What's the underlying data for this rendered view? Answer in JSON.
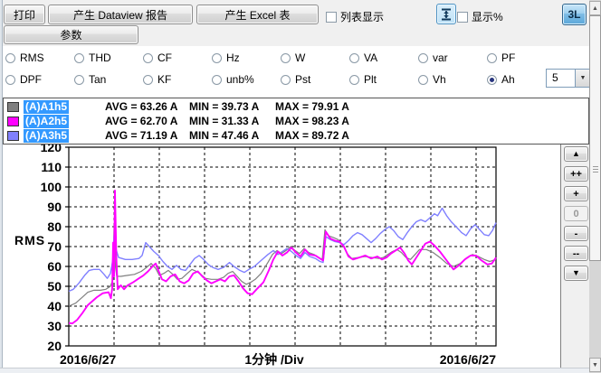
{
  "toolbar": {
    "print_label": "打印",
    "dataview_label": "产生 Dataview 报告",
    "excel_label": "产生 Excel 表",
    "list_display_label": "列表显示",
    "show_percent_label": "显示%",
    "mode_label": "3L",
    "params_label": "参数",
    "fit_icon": "fit-vertical-scale-icon"
  },
  "measures": {
    "rows": [
      [
        "RMS",
        "THD",
        "CF",
        "Hz",
        "W",
        "VA",
        "var",
        "PF"
      ],
      [
        "DPF",
        "Tan",
        "KF",
        "unb%",
        "Pst",
        "Plt",
        "Vh",
        "Ah"
      ]
    ],
    "selected": "Ah",
    "harmonic_order": "5",
    "dropdown_arrow": "▼"
  },
  "legend": {
    "rows": [
      {
        "label": "(A)A1h5",
        "color": "#808080",
        "avg": "AVG = 63.26 A",
        "min": "MIN = 39.73 A",
        "max": "MAX = 79.91 A"
      },
      {
        "label": "(A)A2h5",
        "color": "#ff00ff",
        "avg": "AVG = 62.70 A",
        "min": "MIN = 31.33 A",
        "max": "MAX = 98.23 A"
      },
      {
        "label": "(A)A3h5",
        "color": "#8080ff",
        "avg": "AVG = 71.19 A",
        "min": "MIN = 47.46 A",
        "max": "MAX = 89.72 A"
      }
    ]
  },
  "zoom_controls": [
    {
      "label": "▲",
      "name": "scale-up-button",
      "disabled": false
    },
    {
      "label": "++",
      "name": "zoom-in-fast-button",
      "disabled": false
    },
    {
      "label": "+",
      "name": "zoom-in-button",
      "disabled": false
    },
    {
      "label": "0",
      "name": "zoom-reset-button",
      "disabled": true
    },
    {
      "label": "-",
      "name": "zoom-out-button",
      "disabled": false
    },
    {
      "label": "--",
      "name": "zoom-out-fast-button",
      "disabled": false
    },
    {
      "label": "▼",
      "name": "scale-down-button",
      "disabled": false
    }
  ],
  "scrollbar": {
    "up": "▲",
    "down": "▼"
  },
  "chart_data": {
    "type": "line",
    "ylabel": "RMS",
    "ylim": [
      20,
      120
    ],
    "ytick_step": 10,
    "x_div_label": "1分钟 /Div",
    "x_start_label": "2016/6/27",
    "x_end_label": "2016/6/27",
    "x_total_divs": 9.44,
    "grid": "dashed",
    "legend_position": "top",
    "series": [
      {
        "name": "(A)A1h5",
        "color": "#808080",
        "width": 1.2,
        "unit": "A",
        "points": [
          [
            0,
            40
          ],
          [
            0.15,
            41.5
          ],
          [
            0.3,
            44.5
          ],
          [
            0.42,
            47
          ],
          [
            0.55,
            48
          ],
          [
            0.7,
            48
          ],
          [
            0.82,
            48.5
          ],
          [
            0.92,
            50
          ],
          [
            0.97,
            53
          ],
          [
            1.0,
            79.5
          ],
          [
            1.03,
            60
          ],
          [
            1.06,
            55
          ],
          [
            1.15,
            55
          ],
          [
            1.3,
            55.5
          ],
          [
            1.45,
            56
          ],
          [
            1.6,
            57.5
          ],
          [
            1.72,
            59.5
          ],
          [
            1.82,
            61.5
          ],
          [
            1.92,
            59
          ],
          [
            2.0,
            55.5
          ],
          [
            2.1,
            56.5
          ],
          [
            2.2,
            58
          ],
          [
            2.3,
            56
          ],
          [
            2.4,
            53.5
          ],
          [
            2.5,
            54
          ],
          [
            2.62,
            56.5
          ],
          [
            2.72,
            58.5
          ],
          [
            2.82,
            57.5
          ],
          [
            2.92,
            56
          ],
          [
            3.02,
            54
          ],
          [
            3.15,
            53.5
          ],
          [
            3.3,
            53.5
          ],
          [
            3.42,
            54.5
          ],
          [
            3.52,
            56.5
          ],
          [
            3.62,
            57.5
          ],
          [
            3.72,
            55
          ],
          [
            3.82,
            52.5
          ],
          [
            3.92,
            51
          ],
          [
            4.02,
            52
          ],
          [
            4.12,
            53.5
          ],
          [
            4.25,
            56.5
          ],
          [
            4.4,
            62
          ],
          [
            4.5,
            66
          ],
          [
            4.6,
            68
          ],
          [
            4.7,
            66.5
          ],
          [
            4.8,
            68
          ],
          [
            4.9,
            70
          ],
          [
            5.0,
            68
          ],
          [
            5.1,
            66.5
          ],
          [
            5.2,
            69
          ],
          [
            5.3,
            67
          ],
          [
            5.42,
            66
          ],
          [
            5.52,
            64.5
          ],
          [
            5.6,
            63.5
          ],
          [
            5.66,
            78.5
          ],
          [
            5.73,
            75.5
          ],
          [
            5.85,
            74.5
          ],
          [
            5.95,
            73.5
          ],
          [
            6.05,
            71
          ],
          [
            6.15,
            66.5
          ],
          [
            6.25,
            64
          ],
          [
            6.4,
            64.5
          ],
          [
            6.55,
            65
          ],
          [
            6.7,
            64.5
          ],
          [
            6.85,
            64
          ],
          [
            6.95,
            64.5
          ],
          [
            7.05,
            66
          ],
          [
            7.15,
            67.5
          ],
          [
            7.25,
            68.5
          ],
          [
            7.35,
            67
          ],
          [
            7.45,
            64.5
          ],
          [
            7.55,
            63.5
          ],
          [
            7.65,
            66
          ],
          [
            7.75,
            68.5
          ],
          [
            7.9,
            68.5
          ],
          [
            8.05,
            67
          ],
          [
            8.2,
            64.5
          ],
          [
            8.35,
            61.5
          ],
          [
            8.5,
            60
          ],
          [
            8.65,
            61.5
          ],
          [
            8.8,
            64.5
          ],
          [
            8.92,
            66
          ],
          [
            9.05,
            65
          ],
          [
            9.18,
            63.5
          ],
          [
            9.3,
            62.5
          ],
          [
            9.44,
            63.5
          ]
        ]
      },
      {
        "name": "(A)A3h5",
        "color": "#8080ff",
        "width": 1.4,
        "unit": "A",
        "points": [
          [
            0,
            47.5
          ],
          [
            0.1,
            48.5
          ],
          [
            0.22,
            51.5
          ],
          [
            0.35,
            55.5
          ],
          [
            0.45,
            58
          ],
          [
            0.55,
            58.5
          ],
          [
            0.68,
            58.5
          ],
          [
            0.78,
            56
          ],
          [
            0.85,
            54
          ],
          [
            0.92,
            56.5
          ],
          [
            0.97,
            63
          ],
          [
            1.0,
            75.5
          ],
          [
            1.04,
            69
          ],
          [
            1.1,
            64.5
          ],
          [
            1.25,
            63.5
          ],
          [
            1.4,
            63.5
          ],
          [
            1.55,
            64
          ],
          [
            1.62,
            65.5
          ],
          [
            1.7,
            72
          ],
          [
            1.78,
            70
          ],
          [
            1.88,
            67.5
          ],
          [
            1.98,
            65.5
          ],
          [
            2.08,
            62.5
          ],
          [
            2.18,
            60
          ],
          [
            2.28,
            58.5
          ],
          [
            2.38,
            60.5
          ],
          [
            2.48,
            58.5
          ],
          [
            2.58,
            58
          ],
          [
            2.68,
            61
          ],
          [
            2.78,
            64
          ],
          [
            2.88,
            65.5
          ],
          [
            2.98,
            63.5
          ],
          [
            3.08,
            61
          ],
          [
            3.18,
            59.5
          ],
          [
            3.3,
            58.5
          ],
          [
            3.42,
            59.5
          ],
          [
            3.55,
            62
          ],
          [
            3.65,
            60
          ],
          [
            3.78,
            58
          ],
          [
            3.88,
            57
          ],
          [
            3.98,
            58.5
          ],
          [
            4.1,
            60
          ],
          [
            4.25,
            63
          ],
          [
            4.4,
            66
          ],
          [
            4.52,
            68
          ],
          [
            4.62,
            66
          ],
          [
            4.72,
            67.5
          ],
          [
            4.82,
            69
          ],
          [
            4.92,
            67.5
          ],
          [
            5.02,
            65.5
          ],
          [
            5.12,
            64
          ],
          [
            5.22,
            67
          ],
          [
            5.32,
            65
          ],
          [
            5.45,
            64
          ],
          [
            5.55,
            62.5
          ],
          [
            5.62,
            62
          ],
          [
            5.68,
            75
          ],
          [
            5.78,
            73.5
          ],
          [
            5.88,
            72.5
          ],
          [
            5.98,
            72
          ],
          [
            6.08,
            71
          ],
          [
            6.18,
            73
          ],
          [
            6.28,
            75.5
          ],
          [
            6.38,
            77
          ],
          [
            6.48,
            76
          ],
          [
            6.58,
            74
          ],
          [
            6.68,
            72
          ],
          [
            6.78,
            74
          ],
          [
            6.88,
            76.5
          ],
          [
            6.98,
            78.5
          ],
          [
            7.08,
            80
          ],
          [
            7.18,
            78
          ],
          [
            7.28,
            75
          ],
          [
            7.38,
            73.5
          ],
          [
            7.48,
            77
          ],
          [
            7.58,
            80
          ],
          [
            7.68,
            82.5
          ],
          [
            7.78,
            83.5
          ],
          [
            7.88,
            82.5
          ],
          [
            7.98,
            84.5
          ],
          [
            8.08,
            86.5
          ],
          [
            8.15,
            85.5
          ],
          [
            8.25,
            89.3
          ],
          [
            8.35,
            85.5
          ],
          [
            8.45,
            82.5
          ],
          [
            8.58,
            79.5
          ],
          [
            8.68,
            77
          ],
          [
            8.78,
            75.5
          ],
          [
            8.88,
            79
          ],
          [
            8.98,
            81
          ],
          [
            9.08,
            78.5
          ],
          [
            9.18,
            76
          ],
          [
            9.28,
            75.5
          ],
          [
            9.36,
            78
          ],
          [
            9.44,
            82
          ]
        ]
      },
      {
        "name": "(A)A2h5",
        "color": "#ff00ff",
        "width": 1.9,
        "unit": "A",
        "points": [
          [
            0,
            31.5
          ],
          [
            0.08,
            31.3
          ],
          [
            0.18,
            33
          ],
          [
            0.3,
            36.5
          ],
          [
            0.42,
            40.5
          ],
          [
            0.52,
            42.5
          ],
          [
            0.62,
            44.5
          ],
          [
            0.75,
            46.5
          ],
          [
            0.88,
            47
          ],
          [
            0.93,
            44
          ],
          [
            0.96,
            49
          ],
          [
            0.98,
            72
          ],
          [
            1.0,
            55
          ],
          [
            1.02,
            98.2
          ],
          [
            1.05,
            65
          ],
          [
            1.08,
            48.5
          ],
          [
            1.15,
            50.5
          ],
          [
            1.22,
            48.5
          ],
          [
            1.3,
            50.5
          ],
          [
            1.42,
            52
          ],
          [
            1.55,
            54
          ],
          [
            1.65,
            55.5
          ],
          [
            1.75,
            57.5
          ],
          [
            1.85,
            60
          ],
          [
            1.92,
            61.5
          ],
          [
            1.98,
            58
          ],
          [
            2.06,
            53.5
          ],
          [
            2.15,
            52.5
          ],
          [
            2.25,
            55
          ],
          [
            2.35,
            56
          ],
          [
            2.45,
            52.5
          ],
          [
            2.55,
            51.5
          ],
          [
            2.65,
            53
          ],
          [
            2.75,
            56.5
          ],
          [
            2.85,
            57.5
          ],
          [
            2.95,
            55
          ],
          [
            3.05,
            53
          ],
          [
            3.15,
            51.5
          ],
          [
            3.25,
            52.5
          ],
          [
            3.35,
            53.5
          ],
          [
            3.45,
            52.5
          ],
          [
            3.55,
            55
          ],
          [
            3.65,
            55.5
          ],
          [
            3.75,
            52.5
          ],
          [
            3.85,
            49
          ],
          [
            3.95,
            46.5
          ],
          [
            4.05,
            46
          ],
          [
            4.15,
            48.5
          ],
          [
            4.3,
            52
          ],
          [
            4.42,
            58
          ],
          [
            4.52,
            63.5
          ],
          [
            4.62,
            67.5
          ],
          [
            4.72,
            65.5
          ],
          [
            4.82,
            67
          ],
          [
            4.92,
            69.5
          ],
          [
            5.02,
            67
          ],
          [
            5.12,
            65
          ],
          [
            5.22,
            68.5
          ],
          [
            5.32,
            66
          ],
          [
            5.45,
            65.5
          ],
          [
            5.55,
            64
          ],
          [
            5.62,
            63
          ],
          [
            5.68,
            77.5
          ],
          [
            5.78,
            74
          ],
          [
            5.88,
            73
          ],
          [
            5.98,
            72.5
          ],
          [
            6.08,
            70
          ],
          [
            6.18,
            65
          ],
          [
            6.28,
            63.5
          ],
          [
            6.42,
            64.5
          ],
          [
            6.55,
            65.5
          ],
          [
            6.68,
            64
          ],
          [
            6.82,
            65
          ],
          [
            6.92,
            63.5
          ],
          [
            7.02,
            64.5
          ],
          [
            7.12,
            66.5
          ],
          [
            7.22,
            68
          ],
          [
            7.32,
            69.5
          ],
          [
            7.42,
            66.5
          ],
          [
            7.5,
            63
          ],
          [
            7.58,
            61
          ],
          [
            7.68,
            64.5
          ],
          [
            7.78,
            68
          ],
          [
            7.88,
            71.5
          ],
          [
            7.98,
            72.5
          ],
          [
            8.08,
            70.5
          ],
          [
            8.2,
            67.5
          ],
          [
            8.35,
            63
          ],
          [
            8.5,
            58.5
          ],
          [
            8.62,
            60.5
          ],
          [
            8.75,
            63.5
          ],
          [
            8.88,
            65.5
          ],
          [
            9.0,
            65.5
          ],
          [
            9.12,
            63
          ],
          [
            9.25,
            61
          ],
          [
            9.35,
            61.5
          ],
          [
            9.44,
            64.5
          ]
        ]
      }
    ]
  }
}
